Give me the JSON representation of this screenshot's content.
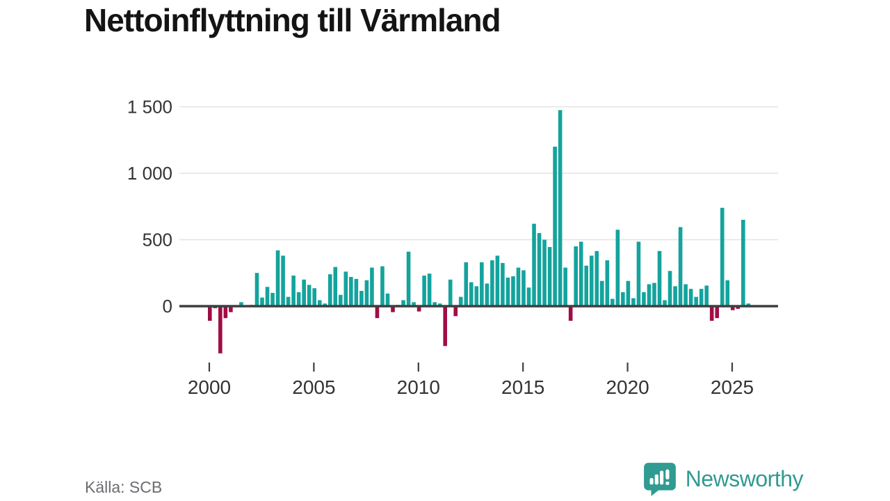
{
  "title": "Nettoinflyttning till Värmland",
  "source": "Källa: SCB",
  "branding": {
    "name": "Newsworthy",
    "logo_icon": "newsworthy-speech-bubble-chart-icon",
    "color": "#2f9b91"
  },
  "colors": {
    "positive_bar": "#14a39d",
    "negative_bar": "#a00d45",
    "axis": "#3f3f3f",
    "grid": "#e3e3e3",
    "tick_label": "#333333",
    "source_text": "#6c6c71",
    "title_text": "#141414"
  },
  "chart_data": {
    "type": "bar",
    "title": "Nettoinflyttning till Värmland",
    "xlabel": "",
    "ylabel": "",
    "frequency": "quarterly",
    "x_start": "2000 Q1",
    "x_end": "2025 Q4",
    "values": [
      -110,
      -15,
      -355,
      -90,
      -45,
      5,
      30,
      5,
      10,
      250,
      65,
      145,
      100,
      420,
      380,
      70,
      230,
      105,
      200,
      160,
      135,
      45,
      20,
      240,
      295,
      85,
      260,
      220,
      205,
      115,
      195,
      290,
      -90,
      300,
      95,
      -45,
      10,
      45,
      410,
      30,
      -40,
      230,
      245,
      30,
      20,
      -300,
      200,
      -75,
      70,
      330,
      180,
      150,
      330,
      170,
      345,
      380,
      325,
      215,
      225,
      290,
      270,
      140,
      620,
      550,
      500,
      445,
      1200,
      1475,
      290,
      -110,
      450,
      485,
      305,
      380,
      415,
      190,
      345,
      55,
      575,
      105,
      190,
      60,
      485,
      105,
      165,
      175,
      415,
      45,
      265,
      150,
      595,
      165,
      130,
      70,
      130,
      155,
      -110,
      -90,
      740,
      195,
      -30,
      -20,
      650,
      20
    ],
    "x_tick_years": [
      2000,
      2005,
      2010,
      2015,
      2020,
      2025
    ],
    "x_tick_labels": [
      "2000",
      "2005",
      "2010",
      "2015",
      "2020",
      "2025"
    ],
    "y_ticks": [
      0,
      500,
      1000,
      1500
    ],
    "y_tick_labels": [
      "0",
      "500",
      "1 000",
      "1 500"
    ],
    "ylim": [
      -400,
      1550
    ],
    "grid": "horizontal",
    "legend": "none",
    "positive_color": "#14a39d",
    "negative_color": "#a00d45"
  }
}
